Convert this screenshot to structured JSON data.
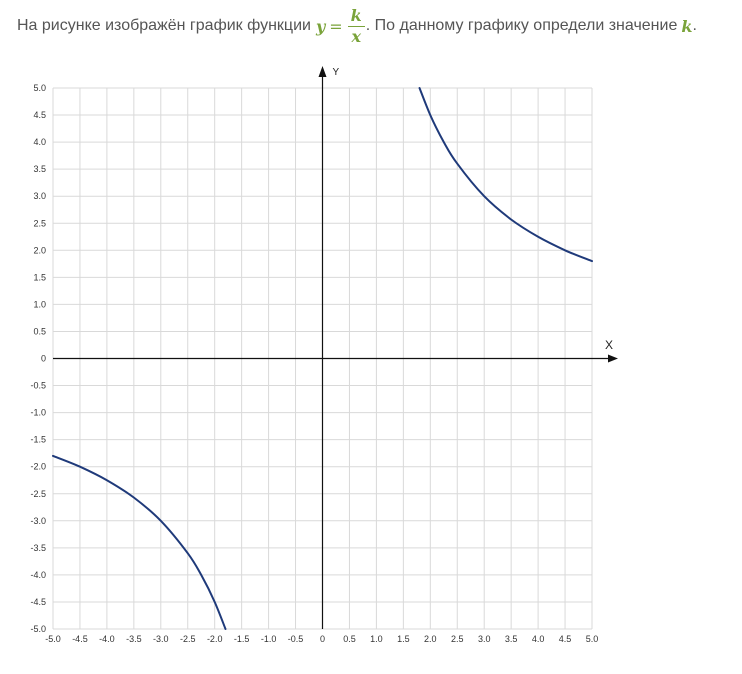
{
  "question": {
    "text_before": "На рисунке изображён график функции",
    "y_symbol": "y",
    "equals": "=",
    "numerator": "k",
    "denominator": "x",
    "text_after": ". По данному графику определи значение",
    "k_symbol": "k",
    "end": "."
  },
  "colors": {
    "curve": "#1f3a7a",
    "grid": "#d9d9d9",
    "axis": "#111111",
    "math_accent": "#7aa33a"
  },
  "chart_data": {
    "type": "line",
    "title": "",
    "xlabel": "X",
    "ylabel": "Y",
    "xlim": [
      -5,
      5
    ],
    "ylim": [
      -5,
      5
    ],
    "grid": true,
    "x_ticks": [
      -5.0,
      -4.5,
      -4.0,
      -3.5,
      -3.0,
      -2.5,
      -2.0,
      -1.5,
      -1.0,
      -0.5,
      0,
      0.5,
      1.0,
      1.5,
      2.0,
      2.5,
      3.0,
      3.5,
      4.0,
      4.5,
      5.0
    ],
    "x_tick_labels": [
      "-5.0",
      "-4.5",
      "-4.0",
      "-3.5",
      "-3.0",
      "-2.5",
      "-2.0",
      "-1.5",
      "-1.0",
      "-0.5",
      "0",
      "0.5",
      "1.0",
      "1.5",
      "2.0",
      "2.5",
      "3.0",
      "3.5",
      "4.0",
      "4.5",
      "5.0"
    ],
    "y_ticks": [
      5.0,
      4.5,
      4.0,
      3.5,
      3.0,
      2.5,
      2.0,
      1.5,
      1.0,
      0.5,
      0,
      -0.5,
      -1.0,
      -1.5,
      -2.0,
      -2.5,
      -3.0,
      -3.5,
      -4.0,
      -4.5,
      -5.0
    ],
    "y_tick_labels": [
      "5.0",
      "4.5",
      "4.0",
      "3.5",
      "3.0",
      "2.5",
      "2.0",
      "1.5",
      "1.0",
      "0.5",
      "0",
      "-0.5",
      "-1.0",
      "-1.5",
      "-2.0",
      "-2.5",
      "-3.0",
      "-3.5",
      "-4.0",
      "-4.5",
      "-5.0"
    ],
    "series": [
      {
        "branch": "first-quadrant",
        "x": [
          1.8,
          2.0,
          2.25,
          2.5,
          3.0,
          3.5,
          4.0,
          4.5,
          5.0
        ],
        "y": [
          5.0,
          4.5,
          4.0,
          3.6,
          3.0,
          2.57,
          2.25,
          2.0,
          1.8
        ]
      },
      {
        "branch": "third-quadrant",
        "x": [
          -5.0,
          -4.5,
          -4.0,
          -3.5,
          -3.0,
          -2.5,
          -2.25,
          -2.0,
          -1.8
        ],
        "y": [
          -1.8,
          -2.0,
          -2.25,
          -2.57,
          -3.0,
          -3.6,
          -4.0,
          -4.5,
          -5.0
        ]
      }
    ]
  }
}
